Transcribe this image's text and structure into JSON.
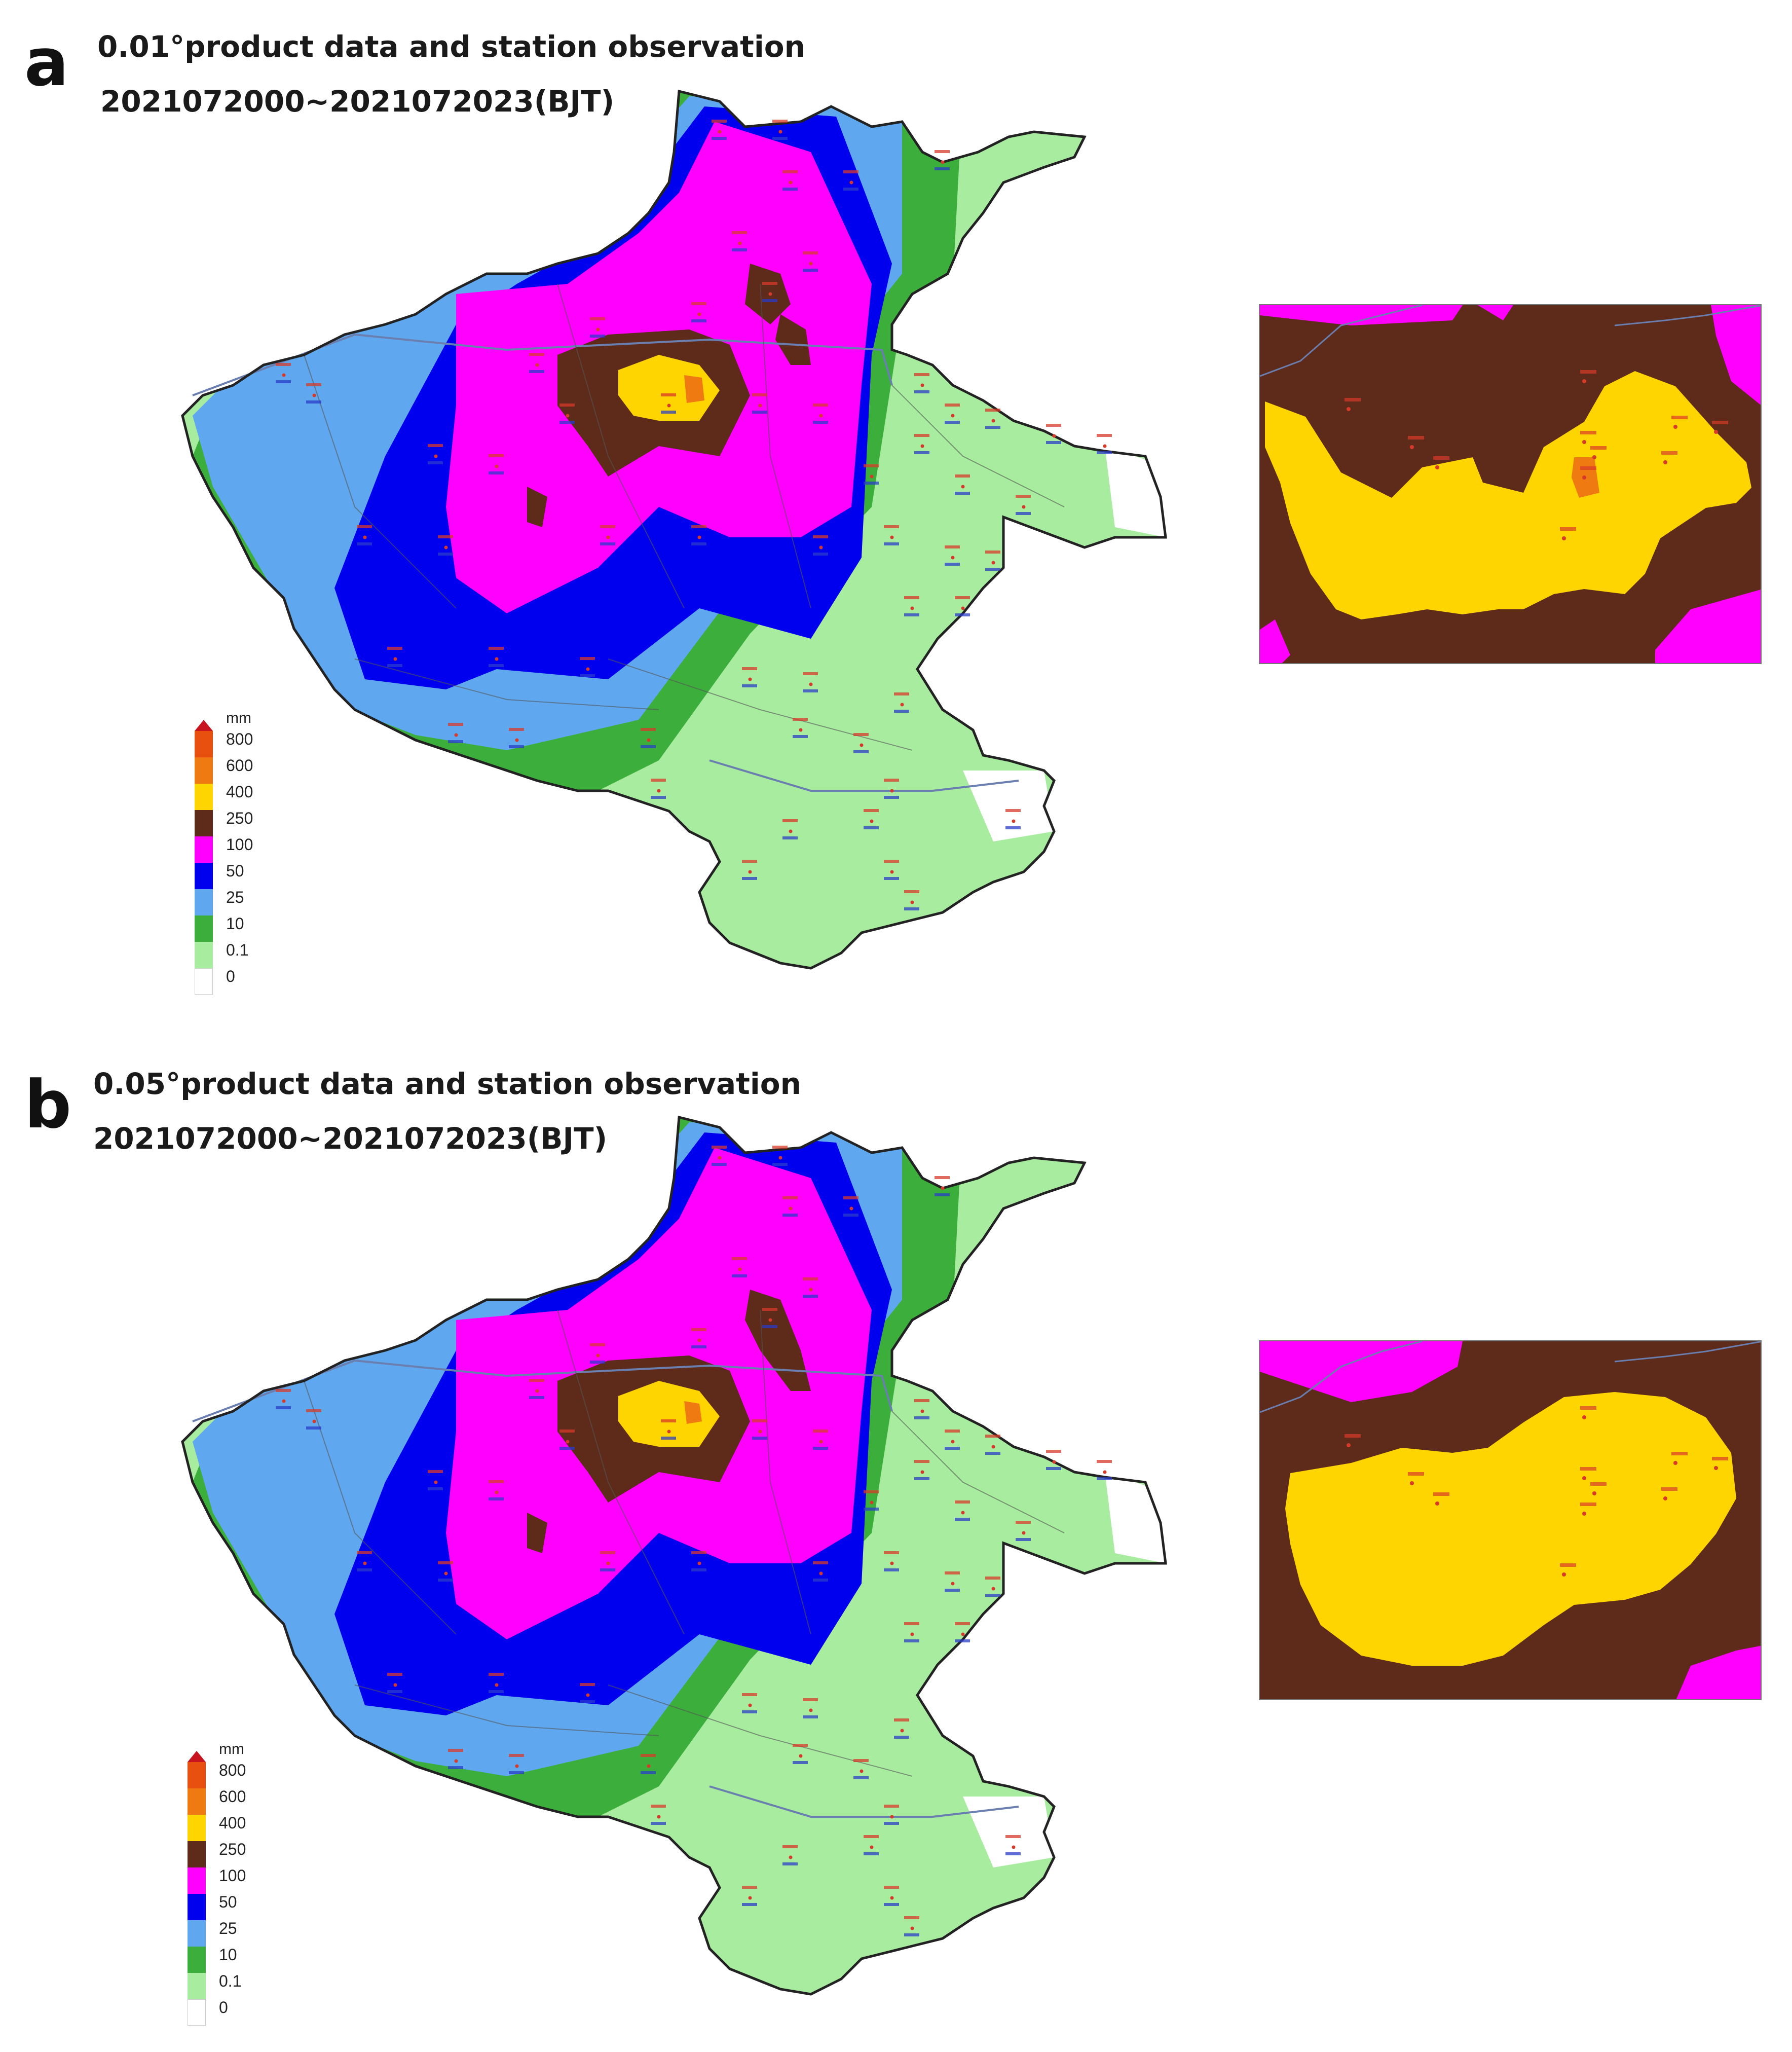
{
  "panels": [
    {
      "letter": "a",
      "title": "0.01°product data and station observation",
      "subtitle": "2021072000~2021072023(BJT)"
    },
    {
      "letter": "b",
      "title": "0.05°product data and station observation",
      "subtitle": "2021072000~2021072023(BJT)"
    }
  ],
  "legend": {
    "unit": "mm",
    "levels": [
      {
        "label": "800",
        "color": "#e8500f"
      },
      {
        "label": "600",
        "color": "#f07a12"
      },
      {
        "label": "400",
        "color": "#ffd500"
      },
      {
        "label": "250",
        "color": "#5e2a1a"
      },
      {
        "label": "100",
        "color": "#ff00ff"
      },
      {
        "label": "50",
        "color": "#0000ee"
      },
      {
        "label": "25",
        "color": "#5fa8f0"
      },
      {
        "label": "10",
        "color": "#3cae3c"
      },
      {
        "label": "0.1",
        "color": "#a8eca0"
      },
      {
        "label": "0",
        "color": "#ffffff"
      }
    ],
    "arrow_color": "#c8141e"
  },
  "colors": {
    "boundary": "#222222",
    "rivers": "#6a7fb0",
    "station_values": "#d83a2a",
    "station_names": "#2a3cc8"
  }
}
